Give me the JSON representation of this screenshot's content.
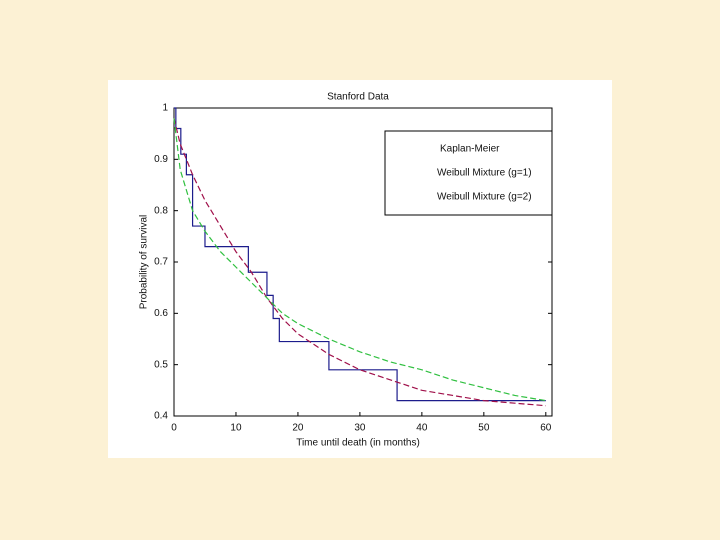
{
  "chart_data": {
    "type": "line",
    "title": "Stanford Data",
    "xlabel": "Time until death (in months)",
    "ylabel": "Probability of survival",
    "xlim": [
      0,
      61
    ],
    "ylim": [
      0.4,
      1
    ],
    "xticks": [
      0,
      10,
      20,
      30,
      40,
      50,
      60
    ],
    "yticks": [
      0.4,
      0.5,
      0.6,
      0.7,
      0.8,
      0.9,
      1
    ],
    "legend": "upper right",
    "series": [
      {
        "name": "Kaplan-Meier",
        "color": "#1c1c8c",
        "step": true,
        "x": [
          0,
          0.3,
          1.1,
          2,
          3,
          5,
          12,
          15,
          16,
          17,
          25,
          36,
          60
        ],
        "values": [
          1,
          0.96,
          0.91,
          0.87,
          0.77,
          0.73,
          0.68,
          0.635,
          0.59,
          0.545,
          0.49,
          0.43,
          0.43
        ]
      },
      {
        "name": "Weibull Mixture (g=1)",
        "color": "#a0104a",
        "dashed": true,
        "x": [
          0,
          1,
          2,
          3,
          5,
          7.5,
          10,
          12.5,
          15,
          17.5,
          20,
          25,
          30,
          35,
          40,
          45,
          50,
          55,
          60
        ],
        "values": [
          0.98,
          0.93,
          0.9,
          0.87,
          0.82,
          0.77,
          0.72,
          0.68,
          0.63,
          0.59,
          0.56,
          0.52,
          0.49,
          0.47,
          0.45,
          0.44,
          0.43,
          0.425,
          0.42
        ]
      },
      {
        "name": "Weibull Mixture (g=2)",
        "color": "#30c040",
        "dashed": true,
        "x": [
          0,
          1,
          2,
          3,
          5,
          7.5,
          10,
          12.5,
          15,
          17.5,
          20,
          25,
          30,
          35,
          40,
          45,
          50,
          55,
          60
        ],
        "values": [
          0.98,
          0.88,
          0.84,
          0.8,
          0.76,
          0.72,
          0.69,
          0.66,
          0.63,
          0.6,
          0.58,
          0.55,
          0.525,
          0.505,
          0.49,
          0.47,
          0.455,
          0.44,
          0.43
        ]
      }
    ]
  }
}
